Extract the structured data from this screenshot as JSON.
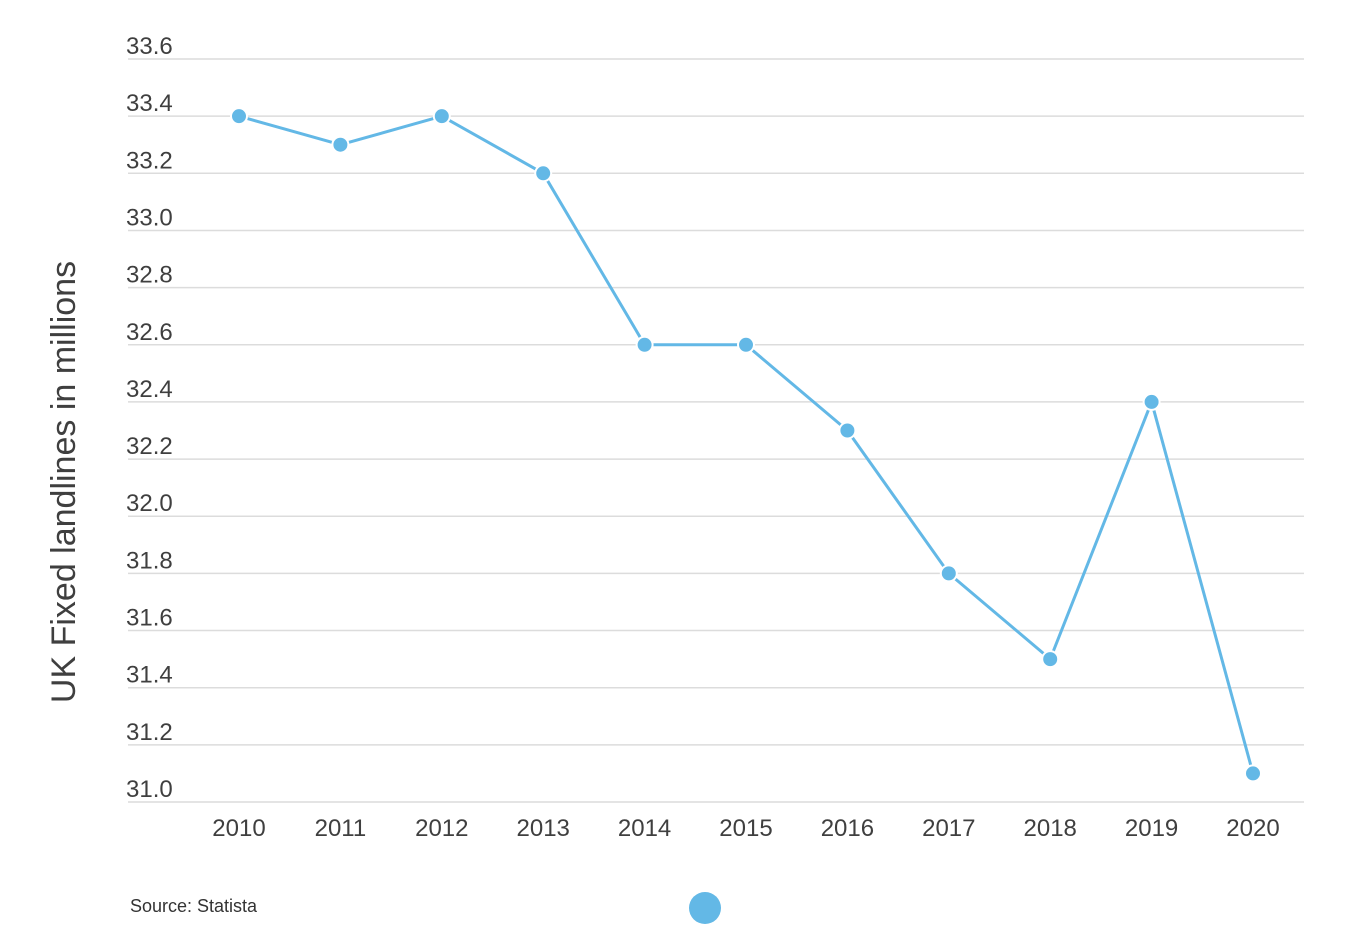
{
  "chart_data": {
    "type": "line",
    "x": [
      "2010",
      "2011",
      "2012",
      "2013",
      "2014",
      "2015",
      "2016",
      "2017",
      "2018",
      "2019",
      "2020"
    ],
    "series": [
      {
        "name": "",
        "values": [
          33.4,
          33.3,
          33.4,
          33.2,
          32.6,
          32.6,
          32.3,
          31.8,
          31.5,
          32.4,
          31.1
        ]
      }
    ],
    "yticks": [
      "31.0",
      "31.2",
      "31.4",
      "31.6",
      "31.8",
      "32.0",
      "32.2",
      "32.4",
      "32.6",
      "32.8",
      "33.0",
      "33.2",
      "33.4",
      "33.6"
    ],
    "ylim": [
      31.0,
      33.6
    ],
    "ylabel": "UK Fixed landlines in millions",
    "xlabel": "",
    "grid": true,
    "legend": "bottom-center",
    "source": "Source: Statista",
    "colors": {
      "series": "#63b8e6",
      "grid": "#dcdcdc",
      "text": "#3f3f3f"
    }
  }
}
